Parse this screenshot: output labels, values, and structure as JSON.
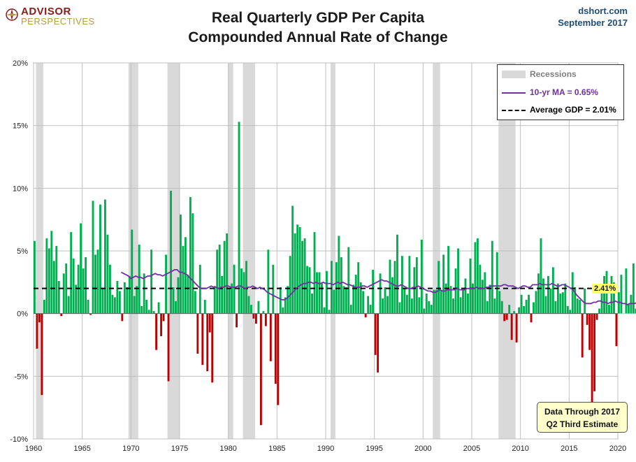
{
  "header": {
    "logo_top": "ADVISOR",
    "logo_bottom": "PERSPECTIVES",
    "title_line1": "Real Quarterly GDP Per Capita",
    "title_line2": "Compounded Annual Rate of Change",
    "source_line1": "dshort.com",
    "source_line2": "September 2017"
  },
  "legend": {
    "recessions": "Recessions",
    "ma": "10-yr MA = 0.65%",
    "average": "Average GDP = 2.01%"
  },
  "note": {
    "line1": "Data Through 2017",
    "line2": "Q2 Third Estimate"
  },
  "end_label": "2.41%",
  "colors": {
    "positive": "#00b050",
    "negative": "#c00000",
    "ma": "#7030a0",
    "recession": "#d9d9d9",
    "label_bg": "#ffff66",
    "note_bg": "#ffffcc",
    "title": "#1a1a1a",
    "source": "#1f4e79"
  },
  "chart_data": {
    "type": "bar",
    "title": "Real Quarterly GDP Per Capita — Compounded Annual Rate of Change",
    "xlim": [
      1960,
      2020
    ],
    "ylim": [
      -10,
      20
    ],
    "x_ticks": [
      1960,
      1965,
      1970,
      1975,
      1980,
      1985,
      1990,
      1995,
      2000,
      2005,
      2010,
      2015,
      2020
    ],
    "y_ticks": [
      -10,
      -5,
      0,
      5,
      10,
      15,
      20
    ],
    "y_tick_labels": [
      "-10%",
      "-5%",
      "0%",
      "5%",
      "10%",
      "15%",
      "20%"
    ],
    "grid": true,
    "legend_position": "top-right",
    "average": 2.01,
    "recessions": [
      [
        1960.25,
        1961.0
      ],
      [
        1969.75,
        1970.75
      ],
      [
        1973.75,
        1975.0
      ],
      [
        1980.0,
        1980.5
      ],
      [
        1981.5,
        1982.75
      ],
      [
        1990.5,
        1991.0
      ],
      [
        2001.0,
        2001.75
      ],
      [
        2007.75,
        2009.5
      ]
    ],
    "quarterly_start": 1960.0,
    "quarterly_values": [
      5.8,
      -2.8,
      -0.7,
      -6.5,
      1.1,
      6.0,
      5.2,
      6.6,
      4.2,
      5.4,
      2.6,
      -0.2,
      3.2,
      4.0,
      1.4,
      6.5,
      4.4,
      2.3,
      3.9,
      7.2,
      3.6,
      4.5,
      1.1,
      -0.1,
      9.0,
      4.7,
      5.1,
      8.7,
      2.0,
      9.1,
      6.3,
      3.9,
      1.5,
      1.3,
      2.6,
      1.8,
      -0.6,
      2.5,
      2.1,
      3.0,
      6.7,
      1.4,
      2.2,
      5.5,
      0.6,
      3.2,
      1.1,
      0.3,
      5.1,
      0.2,
      -2.9,
      0.9,
      -1.8,
      -0.6,
      4.7,
      -5.4,
      9.8,
      2.1,
      1.0,
      2.9,
      7.9,
      5.4,
      6.1,
      3.1,
      9.3,
      8.0,
      1.8,
      -3.2,
      3.9,
      -4.1,
      1.1,
      -4.6,
      -1.5,
      -5.5,
      2.2,
      5.1,
      5.5,
      3.0,
      5.8,
      6.4,
      2.0,
      2.4,
      3.9,
      -1.1,
      15.3,
      3.6,
      3.3,
      4.2,
      1.4,
      0.7,
      -0.4,
      -0.8,
      1.0,
      -8.9,
      0.2,
      -1.0,
      5.1,
      -3.8,
      3.9,
      -5.6,
      -7.3,
      2.1,
      0.5,
      1.3,
      2.2,
      4.6,
      8.6,
      6.4,
      7.1,
      6.9,
      5.8,
      6.0,
      3.8,
      3.7,
      1.6,
      6.5,
      3.3,
      3.3,
      2.4,
      0.5,
      3.4,
      0.3,
      4.2,
      1.9,
      4.1,
      6.2,
      4.5,
      2.2,
      2.1,
      5.3,
      0.7,
      2.3,
      3.1,
      4.1,
      2.5,
      1.8,
      -0.3,
      1.4,
      0.7,
      3.5,
      -3.3,
      -4.7,
      3.2,
      1.2,
      2.1,
      1.4,
      4.3,
      2.9,
      4.2,
      6.3,
      0.9,
      4.6,
      2.0,
      1.5,
      4.6,
      1.2,
      3.7,
      4.5,
      1.3,
      5.9,
      0.4,
      1.6,
      1.0,
      0.7,
      1.9,
      1.9,
      4.2,
      1.9,
      4.7,
      2.4,
      5.4,
      2.2,
      1.2,
      3.6,
      5.2,
      1.3,
      1.9,
      2.8,
      1.6,
      4.4,
      2.4,
      5.7,
      6.0,
      3.9,
      2.7,
      3.3,
      1.0,
      2.3,
      5.8,
      1.2,
      4.9,
      1.8,
      1.0,
      -0.6,
      -0.5,
      0.7,
      -2.1,
      0.2,
      -2.3,
      0.5,
      1.5,
      0.6,
      1.1,
      1.5,
      -0.7,
      0.9,
      1.8,
      3.2,
      6.0,
      2.8,
      1.4,
      3.0,
      2.0,
      3.7,
      1.0,
      2.4,
      1.6,
      1.7,
      2.4,
      0.6,
      0.3,
      3.3,
      2.1,
      1.2,
      1.1,
      -3.5,
      2.0,
      -0.9,
      -2.9,
      -9.1,
      -6.2,
      -0.5,
      0.4,
      2.1,
      3.0,
      3.4,
      0.7,
      3.0,
      2.5,
      -2.6,
      1.7,
      3.1,
      0.0,
      3.6,
      0.8,
      1.5,
      4.0,
      0.4,
      0.4,
      0.3,
      -1.0,
      1.9,
      3.2,
      -1.4,
      4.4,
      4.5,
      1.4,
      2.4,
      0.4,
      2.4,
      0.1,
      -0.2,
      1.3,
      -0.1,
      1.8,
      1.2,
      1.4,
      0.7,
      2.4
    ],
    "ma_start": 1969.0,
    "ma_values": [
      3.3,
      3.2,
      3.1,
      3.0,
      2.8,
      2.9,
      3.0,
      2.9,
      2.9,
      2.8,
      2.9,
      3.0,
      3.0,
      3.1,
      3.2,
      3.1,
      3.1,
      3.0,
      3.1,
      3.2,
      3.3,
      3.4,
      3.5,
      3.5,
      3.3,
      3.3,
      3.2,
      3.1,
      2.9,
      2.7,
      2.5,
      2.3,
      2.1,
      2.0,
      2.0,
      2.0,
      2.1,
      2.2,
      2.1,
      2.1,
      2.0,
      2.1,
      2.1,
      2.2,
      2.2,
      2.1,
      2.1,
      2.1,
      2.2,
      2.2,
      2.1,
      2.0,
      2.1,
      2.1,
      2.2,
      2.1,
      2.0,
      2.1,
      2.0,
      1.9,
      1.7,
      1.6,
      1.5,
      1.4,
      1.3,
      1.2,
      1.1,
      1.1,
      1.2,
      1.4,
      1.6,
      1.8,
      2.0,
      2.2,
      2.3,
      2.4,
      2.4,
      2.5,
      2.5,
      2.4,
      2.5,
      2.4,
      2.4,
      2.5,
      2.4,
      2.4,
      2.4,
      2.3,
      2.4,
      2.5,
      2.4,
      2.5,
      2.4,
      2.3,
      2.3,
      2.2,
      2.1,
      2.1,
      2.1,
      2.2,
      2.2,
      2.1,
      2.2,
      2.3,
      2.4,
      2.5,
      2.6,
      2.7,
      2.6,
      2.6,
      2.5,
      2.4,
      2.3,
      2.2,
      2.2,
      2.3,
      2.2,
      2.1,
      2.0,
      2.0,
      2.1,
      2.1,
      2.2,
      2.1,
      2.0,
      1.9,
      1.8,
      1.8,
      1.7,
      1.7,
      1.8,
      1.9,
      1.8,
      1.8,
      1.9,
      1.9,
      1.9,
      1.9,
      2.0,
      1.9,
      1.9,
      1.9,
      2.0,
      2.0,
      2.0,
      2.0,
      2.1,
      2.0,
      2.0,
      2.0,
      2.1,
      2.1,
      2.2,
      2.2,
      2.2,
      2.2,
      2.2,
      2.3,
      2.3,
      2.2,
      2.2,
      2.2,
      2.1,
      2.0,
      2.1,
      2.2,
      2.2,
      2.1,
      2.1,
      2.3,
      2.3,
      2.3,
      2.4,
      2.3,
      2.3,
      2.3,
      2.3,
      2.4,
      2.3,
      2.2,
      2.2,
      2.3,
      2.3,
      2.2,
      2.1,
      2.0,
      1.8,
      1.5,
      1.3,
      1.1,
      0.9,
      0.8,
      0.8,
      0.8,
      0.9,
      0.9,
      1.0,
      1.0,
      0.9,
      0.9,
      0.8,
      0.9,
      0.9,
      1.0,
      0.9,
      0.9,
      0.8,
      0.8,
      0.7,
      0.8,
      0.8,
      0.8,
      0.9,
      0.8,
      0.7,
      0.7,
      0.8,
      0.7,
      0.7,
      0.6,
      0.6,
      0.6,
      0.7,
      0.65
    ]
  }
}
